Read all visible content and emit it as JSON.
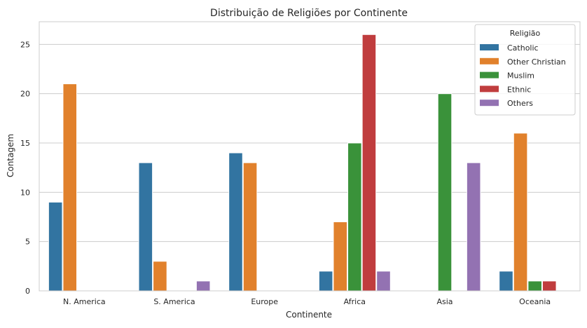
{
  "chart_data": {
    "type": "bar",
    "title": "Distribuição de Religiões por Continente",
    "xlabel": "Continente",
    "ylabel": "Contagem",
    "ylim": [
      0,
      27.3
    ],
    "yticks": [
      0,
      5,
      10,
      15,
      20,
      25
    ],
    "grid": true,
    "legend_title": "Religião",
    "legend_position": "top-right",
    "categories": [
      "N. America",
      "S. America",
      "Europe",
      "Africa",
      "Asia",
      "Oceania"
    ],
    "series": [
      {
        "name": "Catholic",
        "color": "#3274a1",
        "values": [
          9,
          13,
          14,
          2,
          0,
          2
        ]
      },
      {
        "name": "Other Christian",
        "color": "#e1812c",
        "values": [
          21,
          3,
          13,
          7,
          0,
          16
        ]
      },
      {
        "name": "Muslim",
        "color": "#3a923a",
        "values": [
          0,
          0,
          0,
          15,
          20,
          1
        ]
      },
      {
        "name": "Ethnic",
        "color": "#c03d3e",
        "values": [
          0,
          0,
          0,
          26,
          0,
          1
        ]
      },
      {
        "name": "Others",
        "color": "#9372b2",
        "values": [
          0,
          1,
          0,
          2,
          13,
          0
        ]
      }
    ]
  }
}
